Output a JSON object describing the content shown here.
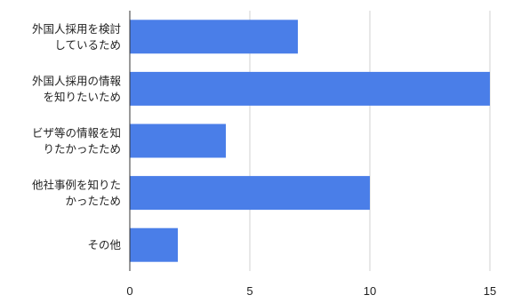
{
  "chart_data": {
    "type": "bar",
    "orientation": "horizontal",
    "title": "",
    "xlabel": "",
    "ylabel": "",
    "categories": [
      [
        "外国人採用を検討",
        "しているため"
      ],
      [
        "外国人採用の情報",
        "を知りたいため"
      ],
      [
        "ビザ等の情報を知",
        "りたかったため"
      ],
      [
        "他社事例を知りた",
        "かったため"
      ],
      [
        "その他"
      ]
    ],
    "values": [
      7,
      15,
      4,
      10,
      2
    ],
    "xlim": [
      0,
      15
    ],
    "xticks": [
      0,
      5,
      10,
      15
    ],
    "grid": true,
    "legend": "none",
    "bar_color": "#4a7ee8"
  }
}
